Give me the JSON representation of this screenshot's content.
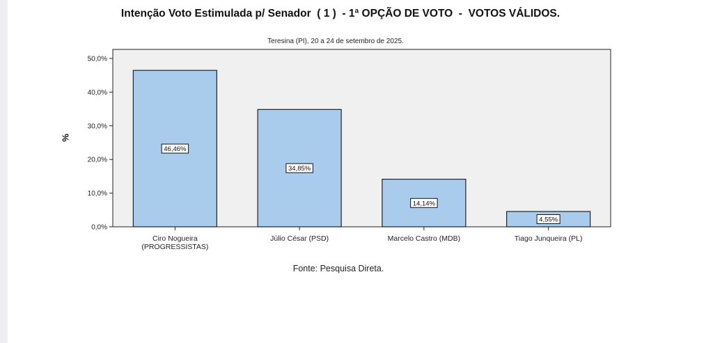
{
  "chart_data": {
    "type": "bar",
    "title": "Intenção Voto Estimulada p/ Senador  ( 1 )  - 1ª OPÇÃO DE VOTO  -  VOTOS VÁLIDOS.",
    "subtitle": "Teresina (PI), 20 a 24 de setembro de 2025.",
    "ylabel": "%",
    "xlabel": "",
    "categories": [
      [
        "Ciro Nogueira",
        "(PROGRESSISTAS)"
      ],
      [
        "Júlio César (PSD)"
      ],
      [
        "Marcelo Castro (MDB)"
      ],
      [
        "Tiago Junqueira (PL)"
      ]
    ],
    "values": [
      46.46,
      34.85,
      14.14,
      4.55
    ],
    "value_labels": [
      "46,46%",
      "34,85%",
      "14,14%",
      "4,55%"
    ],
    "yticks": [
      0,
      10,
      20,
      30,
      40,
      50
    ],
    "ytick_labels": [
      "0,0%",
      "10,0%",
      "20,0%",
      "30,0%",
      "40,0%",
      "50,0%"
    ],
    "ylim": [
      0,
      50
    ],
    "grid": false,
    "colors": {
      "bar": "#a9cced",
      "plot_bg": "#f0f0f0",
      "border": "#222222"
    }
  },
  "source": "Fonte: Pesquisa Direta."
}
